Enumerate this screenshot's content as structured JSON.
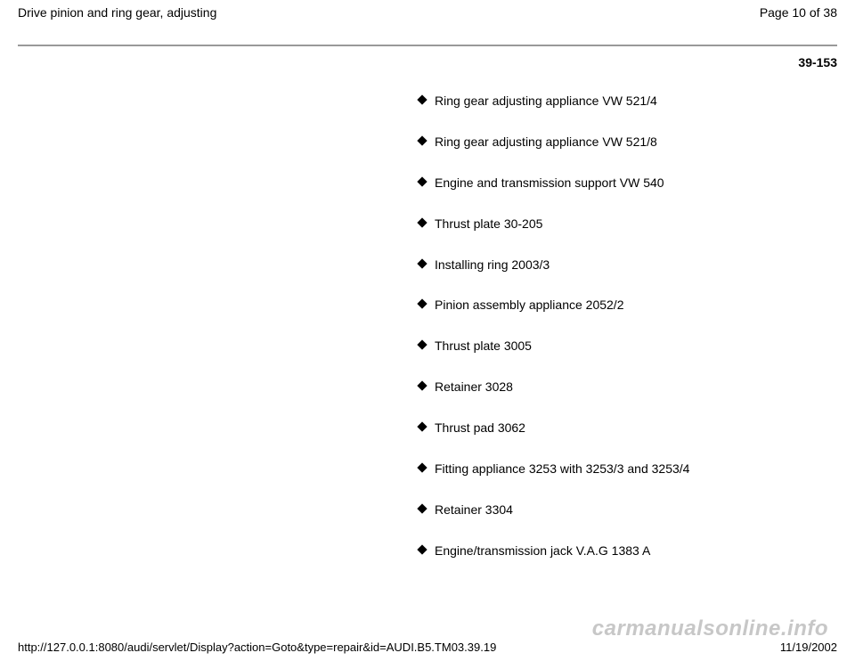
{
  "header": {
    "title": "Drive pinion and ring gear, adjusting",
    "page_indicator": "Page 10 of 38"
  },
  "page_ref": "39-153",
  "tools": [
    "Ring gear adjusting appliance VW 521/4",
    "Ring gear adjusting appliance VW 521/8",
    "Engine and transmission support VW 540",
    "Thrust plate 30-205",
    "Installing ring 2003/3",
    "Pinion assembly appliance 2052/2",
    "Thrust plate 3005",
    "Retainer 3028",
    "Thrust pad 3062",
    "Fitting appliance 3253 with 3253/3 and 3253/4",
    "Retainer 3304",
    "Engine/transmission jack V.A.G 1383 A"
  ],
  "footer": {
    "url": "http://127.0.0.1:8080/audi/servlet/Display?action=Goto&type=repair&id=AUDI.B5.TM03.39.19",
    "date": "11/19/2002"
  },
  "watermark": "carmanualsonline.info"
}
